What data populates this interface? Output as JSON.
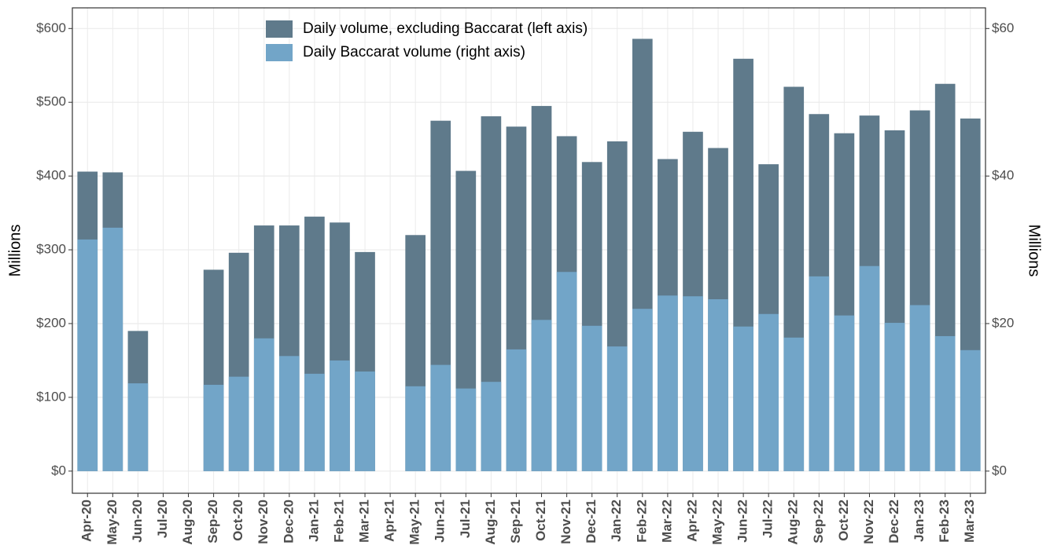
{
  "chart_data": {
    "type": "bar",
    "categories": [
      "Apr-20",
      "May-20",
      "Jun-20",
      "Jul-20",
      "Aug-20",
      "Sep-20",
      "Oct-20",
      "Nov-20",
      "Dec-20",
      "Jan-21",
      "Feb-21",
      "Mar-21",
      "Apr-21",
      "May-21",
      "Jun-21",
      "Jul-21",
      "Aug-21",
      "Sep-21",
      "Oct-21",
      "Nov-21",
      "Dec-21",
      "Jan-22",
      "Feb-22",
      "Mar-22",
      "Apr-22",
      "May-22",
      "Jun-22",
      "Jul-22",
      "Aug-22",
      "Sep-22",
      "Oct-22",
      "Nov-22",
      "Dec-22",
      "Jan-23",
      "Feb-23",
      "Mar-23"
    ],
    "series": [
      {
        "name": "Daily volume, excluding Baccarat (left axis)",
        "color": "#5f7a8b",
        "values": [
          406,
          405,
          190,
          null,
          null,
          273,
          296,
          333,
          333,
          345,
          337,
          297,
          null,
          320,
          475,
          407,
          481,
          467,
          495,
          454,
          419,
          447,
          586,
          423,
          460,
          438,
          559,
          416,
          521,
          484,
          458,
          482,
          462,
          489,
          525,
          478
        ]
      },
      {
        "name": "Daily Baccarat volume (right axis)",
        "color": "#72a5c8",
        "axis": "y2",
        "values": [
          31.4,
          33.0,
          11.9,
          null,
          null,
          11.7,
          12.8,
          18.0,
          15.6,
          13.2,
          15.0,
          13.5,
          null,
          11.5,
          14.4,
          11.2,
          12.1,
          16.5,
          20.5,
          27.0,
          19.7,
          16.9,
          22.0,
          23.8,
          23.7,
          23.3,
          19.6,
          21.3,
          18.1,
          26.4,
          21.1,
          27.8,
          20.1,
          22.5,
          18.3,
          16.4
        ]
      }
    ],
    "y_label": "Millions",
    "y2_label": "Millions",
    "ylim": [
      -30,
      628
    ],
    "yticks": [
      {
        "value": 0,
        "label": "$0"
      },
      {
        "value": 100,
        "label": "$100"
      },
      {
        "value": 200,
        "label": "$200"
      },
      {
        "value": 300,
        "label": "$300"
      },
      {
        "value": 400,
        "label": "$400"
      },
      {
        "value": 500,
        "label": "$500"
      },
      {
        "value": 600,
        "label": "$600"
      }
    ],
    "y2lim": [
      -3,
      62.8
    ],
    "y2ticks": [
      {
        "value": 0,
        "label": "$0"
      },
      {
        "value": 20,
        "label": "$20"
      },
      {
        "value": 40,
        "label": "$40"
      },
      {
        "value": 60,
        "label": "$60"
      }
    ],
    "grid": true,
    "legend": "top"
  }
}
